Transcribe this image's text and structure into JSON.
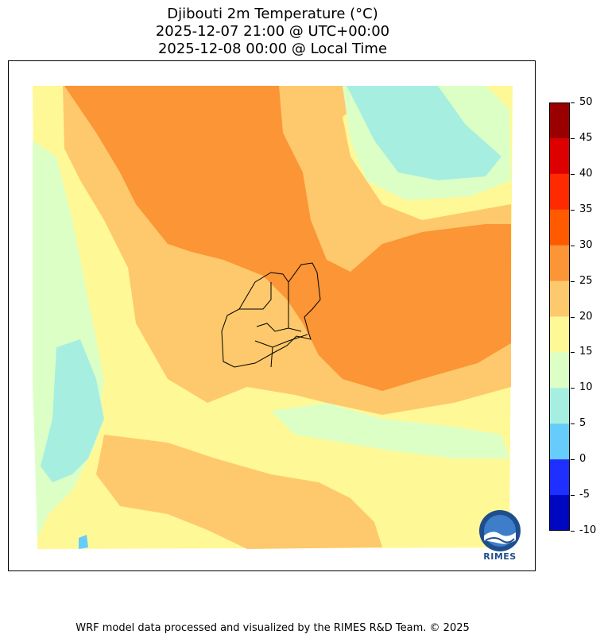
{
  "title": {
    "line1": "Djibouti 2m Temperature (°C)",
    "line2": "2025-12-07 21:00 @ UTC+00:00",
    "line3": "2025-12-08 00:00 @ Local Time"
  },
  "colorbar": {
    "labels": [
      "50",
      "45",
      "40",
      "35",
      "30",
      "25",
      "20",
      "15",
      "10",
      "5",
      "0",
      "-5",
      "-10"
    ],
    "colors": [
      "#9b0000",
      "#dd0000",
      "#ff2a00",
      "#ff5a00",
      "#fb9535",
      "#fec96c",
      "#fff896",
      "#dcffc6",
      "#a6efe0",
      "#66ccfc",
      "#1e2fff",
      "#0007c0"
    ]
  },
  "logo": {
    "text": "RIMES",
    "name": "rimes-logo-icon"
  },
  "footer": "WRF model data processed and visualized by the RIMES R&D Team. © 2025"
}
